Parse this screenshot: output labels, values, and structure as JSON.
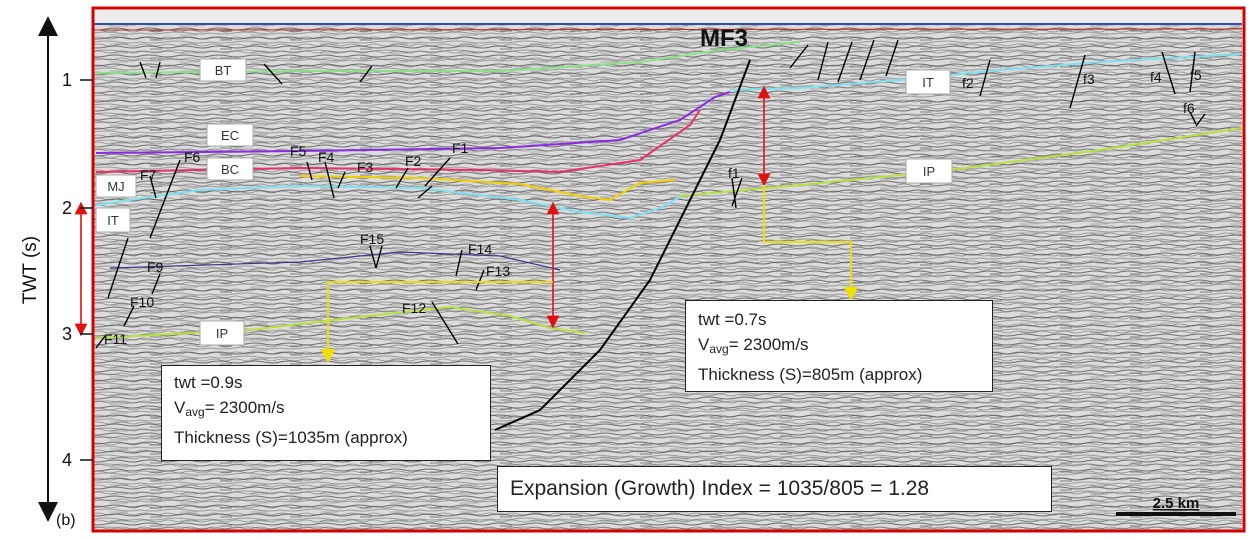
{
  "figure": {
    "axis_title": "TWT (s)",
    "panel_label": "(b)",
    "ticks": [
      "1",
      "2",
      "3",
      "4"
    ]
  },
  "fault_label": "MF3",
  "horizon_labels": {
    "bt": "BT",
    "ec": "EC",
    "bc": "BC",
    "mj": "MJ",
    "it_left": "IT",
    "ip_left": "IP",
    "it_right": "IT",
    "ip_right": "IP"
  },
  "fault_names": {
    "F1": "F1",
    "F2": "F2",
    "F3": "F3",
    "F4": "F4",
    "F5": "F5",
    "F6": "F6",
    "F7": "F7",
    "F9": "F9",
    "F10": "F10",
    "F11": "F11",
    "F12": "F12",
    "F13": "F13",
    "F14": "F14",
    "F15": "F15",
    "f1": "f1",
    "f2": "f2",
    "f3": "f3",
    "f4": "f4",
    "f5": "f5",
    "f6": "f6"
  },
  "left_note": {
    "twt": "twt =0.9s",
    "v_prefix": "V",
    "v_sub": "avg",
    "v_suffix": "= 2300m/s",
    "thickness": "Thickness (S)=1035m (approx)"
  },
  "right_note": {
    "twt": "twt =0.7s",
    "v_prefix": "V",
    "v_sub": "avg",
    "v_suffix": "= 2300m/s",
    "thickness": "Thickness (S)=805m (approx)"
  },
  "expansion_index": "Expansion (Growth) Index = 1035/805 = 1.28",
  "scale_bar": "2.5 km",
  "colors": {
    "frame": "#d40000",
    "bt": "#8ce08c",
    "ec": "#8a2be2",
    "bc": "#e8306a",
    "yellow": "#f0d000",
    "it": "#7fe0f0",
    "ip": "#b8e040",
    "arrow_red": "#e01010",
    "arrow_yellow": "#f0e000"
  }
}
